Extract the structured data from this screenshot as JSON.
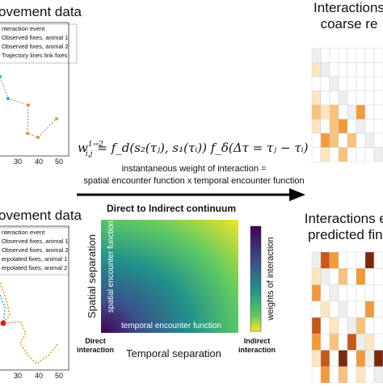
{
  "top_left": {
    "title": "ovement data",
    "legend": [
      "nteraction event",
      "Observed fixes, animal 1",
      "Observed fixes, animal 2",
      "Trajectory lines link fixes"
    ],
    "x_ticks": [
      "30",
      "40",
      "50"
    ]
  },
  "top_right": {
    "title_lines": [
      "Interactions",
      "coarse re"
    ]
  },
  "formula": {
    "w": "w",
    "sub": "i,j",
    "sup": "1→2",
    "rest": "= f_d(s₂(τⱼ), s₁(τᵢ)) f_δ(Δτ = τⱼ − τᵢ)"
  },
  "formula_caption": [
    "instantaneous weight of interaction =",
    "spatial encounter function  x temporal encounter function"
  ],
  "center": {
    "title": "Direct to Indirect continuum",
    "y_label": "Spatial separation",
    "x_label": "Temporal separation",
    "inner_y": "spatial encounter function",
    "inner_x": "temporal encounter function",
    "colorbar_label": "weights of interaction",
    "left_end": [
      "Direct",
      "interaction"
    ],
    "right_end": [
      "Indirect",
      "interaction"
    ]
  },
  "bottom_left": {
    "title": "ovement data",
    "legend": [
      "nteraction event",
      "Observed fixes, animal 1",
      "Observed fixes, animal 2",
      "erpolated fixes, animal 1",
      "erpolated fixes, animal 2"
    ],
    "x_ticks": [
      "30",
      "40",
      "50"
    ]
  },
  "bottom_right": {
    "title_lines": [
      "Interactions ex",
      "predicted fine"
    ]
  }
}
